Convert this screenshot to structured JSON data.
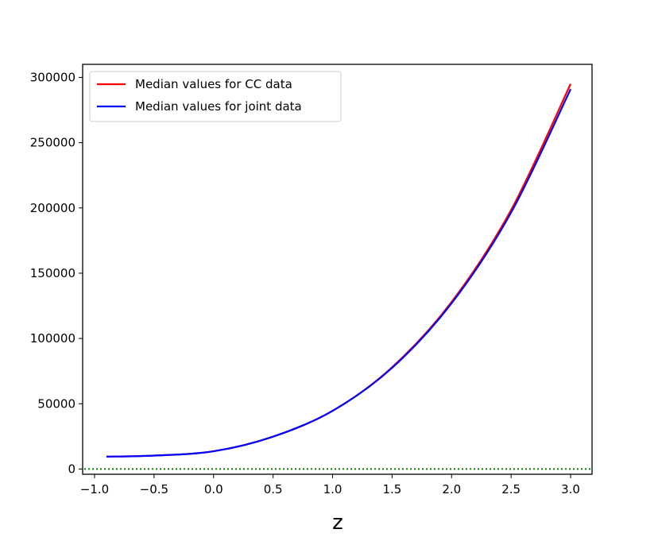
{
  "chart_data": {
    "type": "line",
    "title": "",
    "xlabel": "z",
    "ylabel": "",
    "xlim": [
      -1.1,
      3.18
    ],
    "ylim": [
      -4000,
      310000
    ],
    "xticks": [
      {
        "value": -1.0,
        "label": "−1.0"
      },
      {
        "value": -0.5,
        "label": "−0.5"
      },
      {
        "value": 0.0,
        "label": "0.0"
      },
      {
        "value": 0.5,
        "label": "0.5"
      },
      {
        "value": 1.0,
        "label": "1.0"
      },
      {
        "value": 1.5,
        "label": "1.5"
      },
      {
        "value": 2.0,
        "label": "2.0"
      },
      {
        "value": 2.5,
        "label": "2.5"
      },
      {
        "value": 3.0,
        "label": "3.0"
      }
    ],
    "yticks": [
      {
        "value": 0,
        "label": "0"
      },
      {
        "value": 50000,
        "label": "50000"
      },
      {
        "value": 100000,
        "label": "100000"
      },
      {
        "value": 150000,
        "label": "150000"
      },
      {
        "value": 200000,
        "label": "200000"
      },
      {
        "value": 250000,
        "label": "250000"
      },
      {
        "value": 300000,
        "label": "300000"
      }
    ],
    "grid": false,
    "legend_position": "top-left",
    "series": [
      {
        "name": "Median values for CC data",
        "color": "#ff0000",
        "x": [
          -0.9,
          -0.5,
          0.0,
          0.5,
          1.0,
          1.5,
          2.0,
          2.5,
          3.0
        ],
        "y": [
          9500,
          10300,
          13600,
          24800,
          44600,
          78000,
          128000,
          198500,
          295000
        ]
      },
      {
        "name": "Median values for joint data",
        "color": "#0000ff",
        "x": [
          -0.9,
          -0.5,
          0.0,
          0.5,
          1.0,
          1.5,
          2.0,
          2.5,
          3.0
        ],
        "y": [
          9500,
          10300,
          13600,
          24800,
          44600,
          77500,
          127000,
          196500,
          291000
        ]
      }
    ],
    "reference_line": {
      "y": 0,
      "style": "dotted",
      "color": "#008000"
    }
  }
}
